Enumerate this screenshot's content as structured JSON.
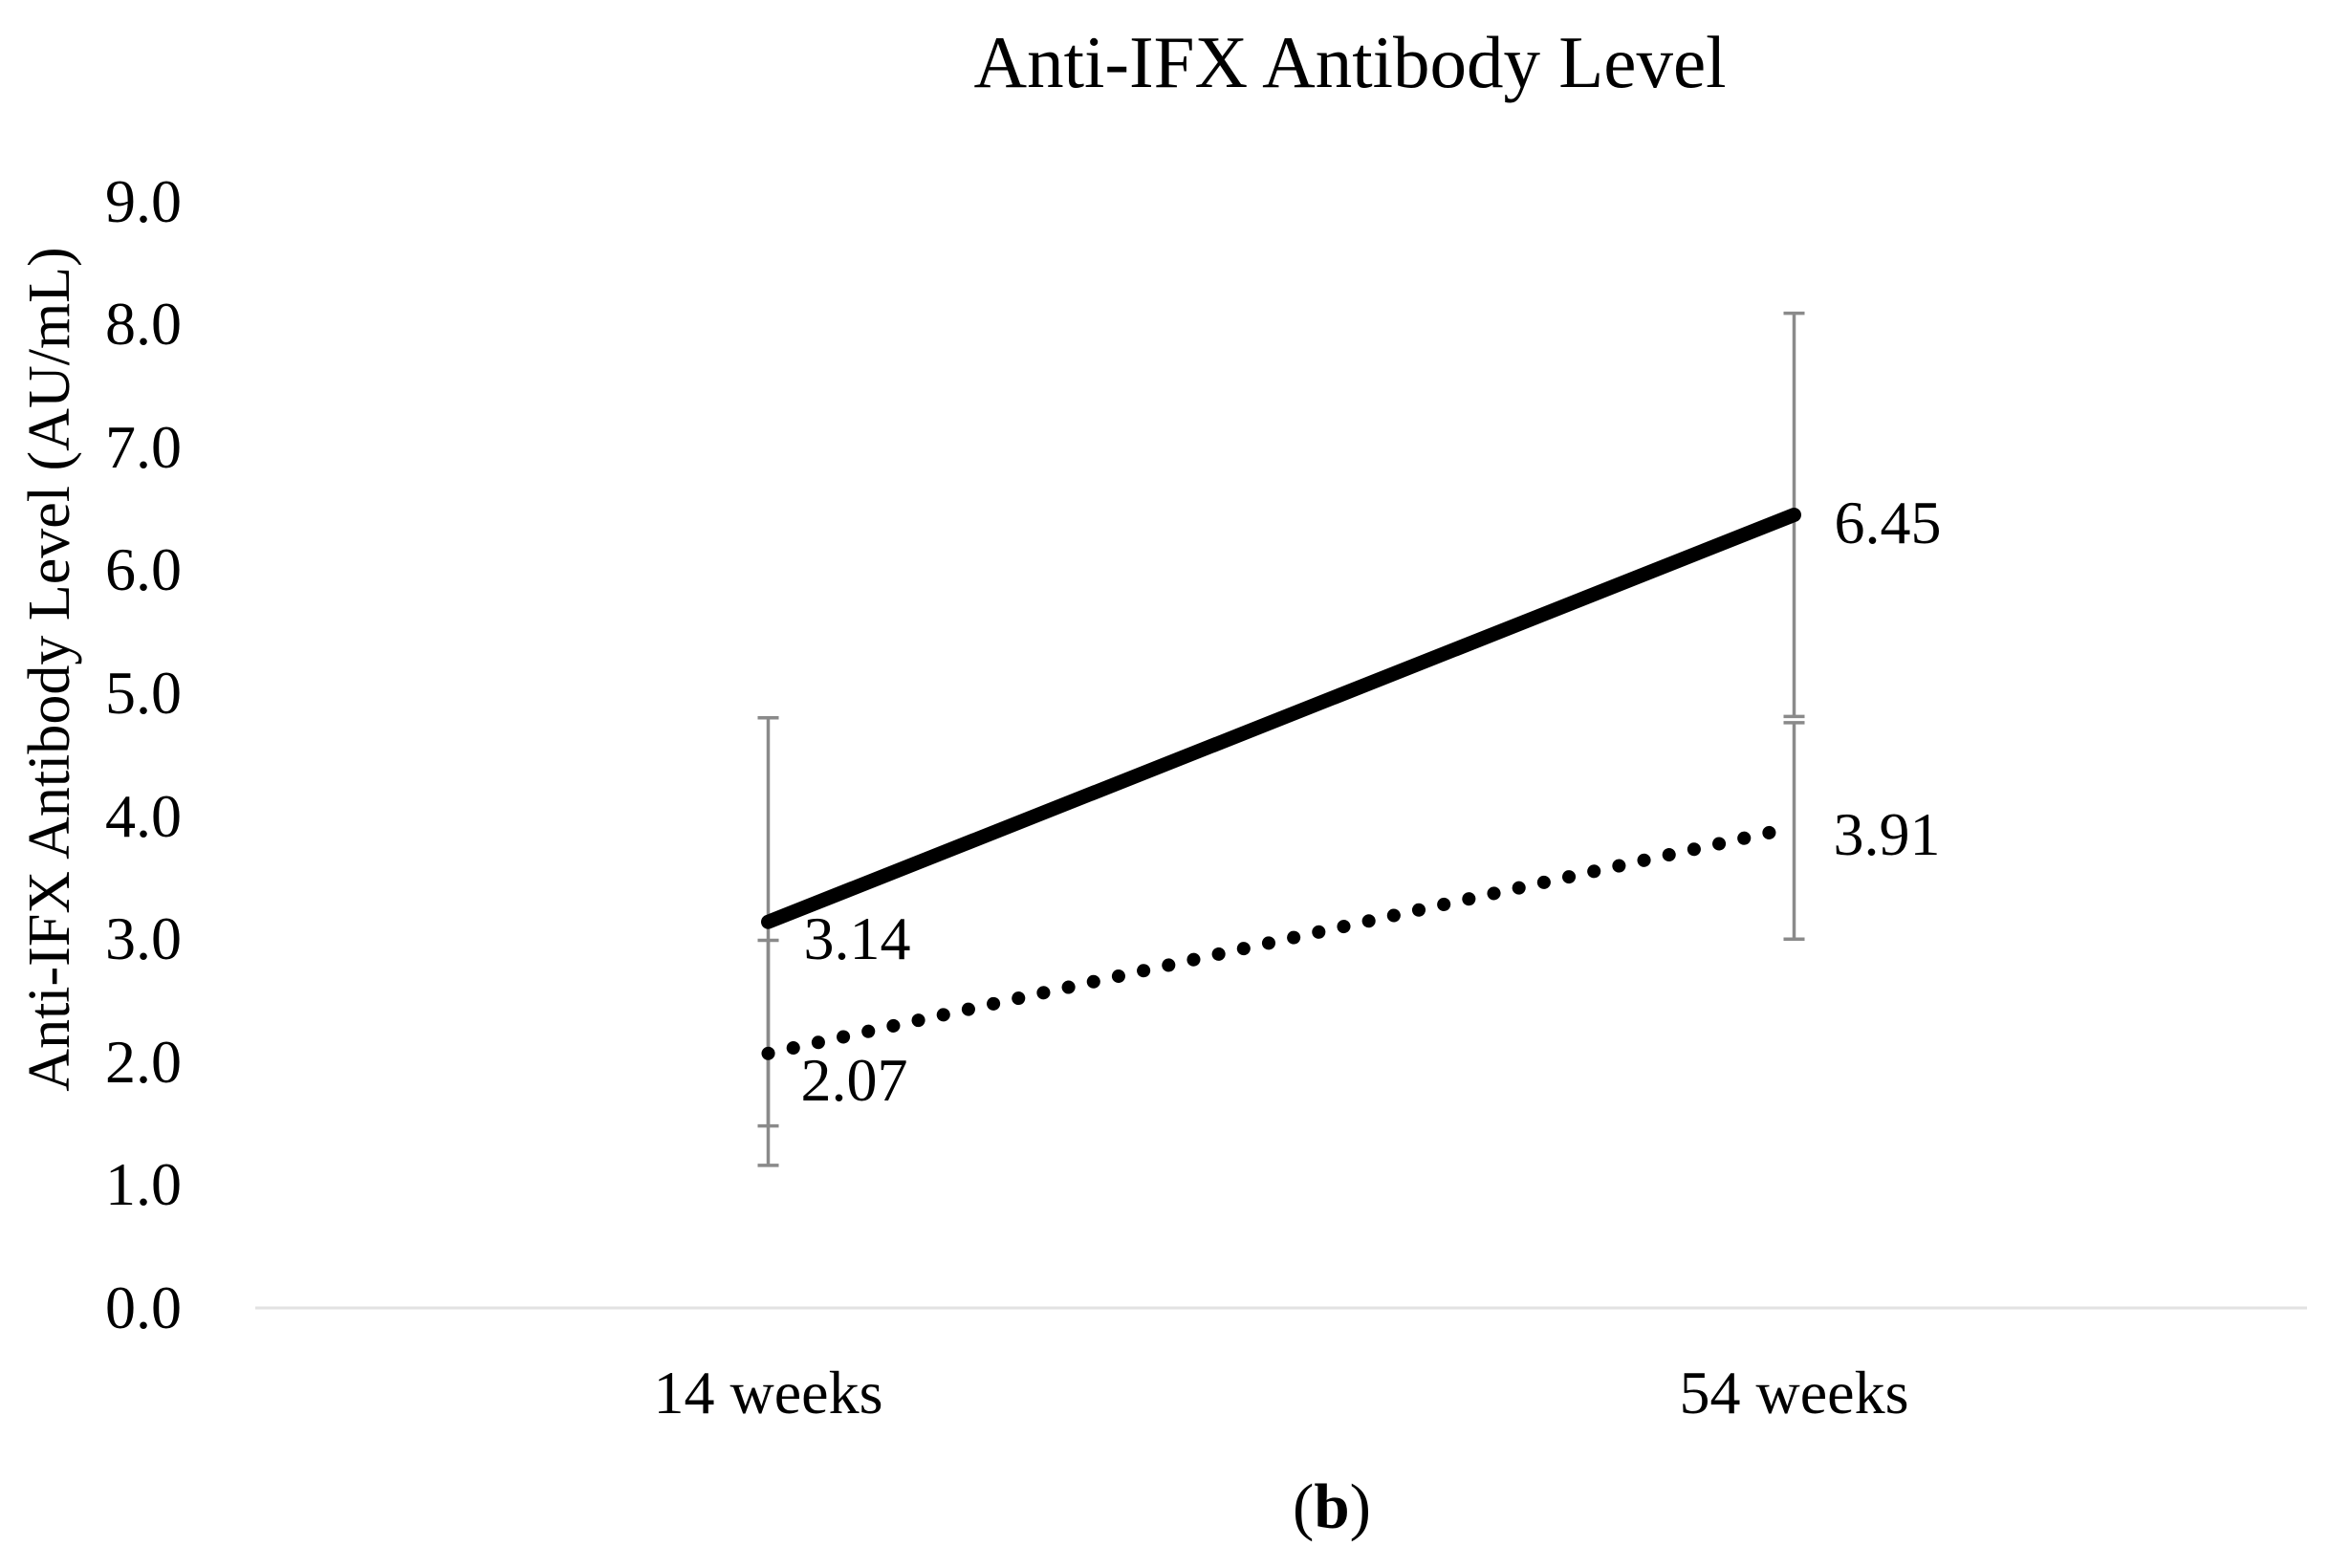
{
  "figure": {
    "caption_open": "(",
    "caption_letter": "b",
    "caption_close": ")",
    "caption_text": "(b)"
  },
  "chart_data": {
    "type": "line",
    "title": "Anti-IFX Antibody Level",
    "xlabel": "",
    "ylabel": "Anti-IFX Antibody Level (AU/mL)",
    "categories": [
      "14 weeks",
      "54 weeks"
    ],
    "ylim": [
      0.0,
      9.0
    ],
    "ytick_step": 1.0,
    "ytick_labels": [
      "0.0",
      "1.0",
      "2.0",
      "3.0",
      "4.0",
      "5.0",
      "6.0",
      "7.0",
      "8.0",
      "9.0"
    ],
    "grid": false,
    "legend": "none",
    "baseline_at": 0.0,
    "series": [
      {
        "name": "anti-ifx-level-solid",
        "style": "solid",
        "values": [
          3.14,
          6.45
        ],
        "labels": [
          "3.14",
          "6.45"
        ],
        "error_low": [
          1.48,
          4.81
        ],
        "error_high": [
          4.8,
          8.09
        ],
        "label_offsets": [
          [
            37,
            18
          ],
          [
            42,
            8
          ]
        ]
      },
      {
        "name": "anti-ifx-level-dotted",
        "style": "dotted",
        "values": [
          2.07,
          3.91
        ],
        "labels": [
          "2.07",
          "3.91"
        ],
        "error_low": [
          1.16,
          3.0
        ],
        "error_high": [
          2.99,
          4.76
        ],
        "label_offsets": [
          [
            34,
            28
          ],
          [
            41,
            8
          ]
        ]
      }
    ],
    "colors": {
      "line": "#000000",
      "error_bar": "#8a8a8a",
      "baseline": "#e2e2e2",
      "text": "#000000"
    }
  }
}
